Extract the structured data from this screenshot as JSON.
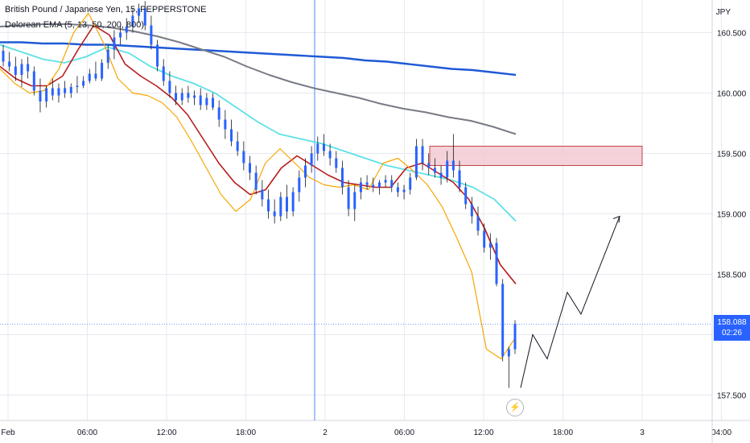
{
  "legend": {
    "title": "British Pound / Japanese Yen, 15, PEPPERSTONE",
    "indicator": "Delorean EMA (5, 13, 50, 200, 800)"
  },
  "colors": {
    "background": "#ffffff",
    "grid": "#e6e9ef",
    "candle_body": "#2962ff",
    "candle_wick": "#131722",
    "ema5": "#f7a600",
    "ema13": "#b71c1c",
    "ema50": "#5ee0e6",
    "ema200": "#787b86",
    "ema800": "#1e5ad6",
    "zone_fill": "#f3c7cf",
    "zone_stroke": "#b71c1c",
    "crosshair": "#2962ff",
    "price_tag": "#2962ff"
  },
  "price_tag": {
    "price": "158.088",
    "countdown": "02:26"
  },
  "chart_data": {
    "type": "candlestick",
    "title": "British Pound / Japanese Yen, 15, PEPPERSTONE",
    "currency": "JPY",
    "ylim": [
      157.29,
      160.77
    ],
    "y_ticks": [
      "160.500",
      "160.000",
      "159.500",
      "159.000",
      "158.500",
      "158.000",
      "157.500"
    ],
    "x_ticks": [
      "Feb",
      "06:00",
      "12:00",
      "18:00",
      "2",
      "06:00",
      "12:00",
      "18:00",
      "3",
      "04:00"
    ],
    "grid": true,
    "current_price": 158.088,
    "candles": {
      "ohlc": [
        [
          160.35,
          160.4,
          160.22,
          160.26
        ],
        [
          160.26,
          160.34,
          160.18,
          160.22
        ],
        [
          160.22,
          160.3,
          160.1,
          160.15
        ],
        [
          160.15,
          160.28,
          160.05,
          160.24
        ],
        [
          160.24,
          160.3,
          160.12,
          160.18
        ],
        [
          160.18,
          160.22,
          159.98,
          160.02
        ],
        [
          160.02,
          160.12,
          159.84,
          159.93
        ],
        [
          159.93,
          160.06,
          159.88,
          160.04
        ],
        [
          160.04,
          160.12,
          159.94,
          159.98
        ],
        [
          159.98,
          160.08,
          159.92,
          160.04
        ],
        [
          160.04,
          160.1,
          159.96,
          160.0
        ],
        [
          160.0,
          160.08,
          159.96,
          160.05
        ],
        [
          160.05,
          160.14,
          160.0,
          160.06
        ],
        [
          160.06,
          160.14,
          160.04,
          160.1
        ],
        [
          160.1,
          160.2,
          160.08,
          160.16
        ],
        [
          160.16,
          160.26,
          160.1,
          160.12
        ],
        [
          160.12,
          160.28,
          160.1,
          160.25
        ],
        [
          160.25,
          160.4,
          160.2,
          160.36
        ],
        [
          160.36,
          160.52,
          160.28,
          160.46
        ],
        [
          160.46,
          160.56,
          160.4,
          160.5
        ],
        [
          160.5,
          160.62,
          160.44,
          160.55
        ],
        [
          160.55,
          160.7,
          160.5,
          160.64
        ],
        [
          160.64,
          160.74,
          160.58,
          160.7
        ],
        [
          160.7,
          160.76,
          160.52,
          160.56
        ],
        [
          160.56,
          160.64,
          160.36,
          160.4
        ],
        [
          160.4,
          160.44,
          160.18,
          160.22
        ],
        [
          160.22,
          160.28,
          160.06,
          160.1
        ],
        [
          160.1,
          160.18,
          159.96,
          160.0
        ],
        [
          160.0,
          160.06,
          159.9,
          159.94
        ],
        [
          159.94,
          160.04,
          159.9,
          160.0
        ],
        [
          160.0,
          160.06,
          159.92,
          159.96
        ],
        [
          159.96,
          160.02,
          159.9,
          159.98
        ],
        [
          159.98,
          160.04,
          159.86,
          159.9
        ],
        [
          159.9,
          160.0,
          159.86,
          159.96
        ],
        [
          159.96,
          160.0,
          159.86,
          159.88
        ],
        [
          159.88,
          159.94,
          159.72,
          159.78
        ],
        [
          159.78,
          159.86,
          159.62,
          159.7
        ],
        [
          159.7,
          159.78,
          159.56,
          159.6
        ],
        [
          159.6,
          159.68,
          159.48,
          159.52
        ],
        [
          159.52,
          159.6,
          159.36,
          159.42
        ],
        [
          159.42,
          159.48,
          159.28,
          159.34
        ],
        [
          159.34,
          159.4,
          159.16,
          159.2
        ],
        [
          159.2,
          159.28,
          159.06,
          159.12
        ],
        [
          159.12,
          159.2,
          158.96,
          159.02
        ],
        [
          159.02,
          159.12,
          158.92,
          158.98
        ],
        [
          158.98,
          159.18,
          158.94,
          159.14
        ],
        [
          159.14,
          159.24,
          158.96,
          159.02
        ],
        [
          159.02,
          159.22,
          158.98,
          159.18
        ],
        [
          159.18,
          159.36,
          159.1,
          159.3
        ],
        [
          159.3,
          159.46,
          159.22,
          159.4
        ],
        [
          159.4,
          159.56,
          159.34,
          159.5
        ],
        [
          159.5,
          159.64,
          159.44,
          159.58
        ],
        [
          159.58,
          159.66,
          159.48,
          159.52
        ],
        [
          159.52,
          159.58,
          159.4,
          159.46
        ],
        [
          159.46,
          159.52,
          159.34,
          159.38
        ],
        [
          159.38,
          159.44,
          159.16,
          159.22
        ],
        [
          159.22,
          159.28,
          158.98,
          159.04
        ],
        [
          159.04,
          159.24,
          158.94,
          159.18
        ],
        [
          159.18,
          159.3,
          159.12,
          159.26
        ],
        [
          159.26,
          159.32,
          159.2,
          159.24
        ],
        [
          159.24,
          159.3,
          159.18,
          159.22
        ],
        [
          159.22,
          159.28,
          159.16,
          159.26
        ],
        [
          159.26,
          159.32,
          159.22,
          159.28
        ],
        [
          159.28,
          159.32,
          159.18,
          159.22
        ],
        [
          159.22,
          159.26,
          159.14,
          159.18
        ],
        [
          159.18,
          159.24,
          159.12,
          159.2
        ],
        [
          159.2,
          159.34,
          159.16,
          159.3
        ],
        [
          159.3,
          159.62,
          159.28,
          159.56
        ],
        [
          159.56,
          159.62,
          159.36,
          159.42
        ],
        [
          159.42,
          159.5,
          159.32,
          159.38
        ],
        [
          159.38,
          159.46,
          159.3,
          159.34
        ],
        [
          159.34,
          159.4,
          159.24,
          159.3
        ],
        [
          159.3,
          159.52,
          159.26,
          159.44
        ],
        [
          159.44,
          159.66,
          159.3,
          159.36
        ],
        [
          159.36,
          159.44,
          159.18,
          159.22
        ],
        [
          159.22,
          159.26,
          159.04,
          159.08
        ],
        [
          159.08,
          159.14,
          158.92,
          158.98
        ],
        [
          158.98,
          159.06,
          158.82,
          158.86
        ],
        [
          158.86,
          158.92,
          158.68,
          158.72
        ],
        [
          158.72,
          158.84,
          158.62,
          158.76
        ],
        [
          158.76,
          158.8,
          158.4,
          158.42
        ],
        [
          158.42,
          158.46,
          157.78,
          157.82
        ],
        [
          157.82,
          157.9,
          157.56,
          157.88
        ],
        [
          157.88,
          158.12,
          157.84,
          158.09
        ]
      ]
    },
    "series": [
      {
        "name": "EMA 800",
        "values": [
          160.42,
          160.42,
          160.41,
          160.41,
          160.4,
          160.4,
          160.39,
          160.38,
          160.37,
          160.36,
          160.35,
          160.34,
          160.33,
          160.32,
          160.31,
          160.3,
          160.29,
          160.27,
          160.26,
          160.24,
          160.22,
          160.2,
          160.19,
          160.17,
          160.15
        ]
      },
      {
        "name": "EMA 200",
        "values": [
          160.55,
          160.56,
          160.57,
          160.57,
          160.56,
          160.54,
          160.51,
          160.47,
          160.42,
          160.36,
          160.3,
          160.22,
          160.15,
          160.09,
          160.04,
          160.0,
          159.96,
          159.91,
          159.87,
          159.84,
          159.8,
          159.77,
          159.72,
          159.66
        ]
      },
      {
        "name": "EMA 50",
        "values": [
          160.4,
          160.34,
          160.28,
          160.25,
          160.3,
          160.38,
          160.33,
          160.22,
          160.14,
          160.08,
          160.0,
          159.88,
          159.76,
          159.66,
          159.62,
          159.58,
          159.52,
          159.46,
          159.4,
          159.36,
          159.32,
          159.28,
          159.22,
          159.12,
          158.94
        ]
      },
      {
        "name": "EMA 13",
        "values": [
          160.22,
          160.12,
          160.06,
          160.06,
          160.14,
          160.36,
          160.56,
          160.48,
          160.24,
          160.14,
          160.06,
          159.96,
          159.82,
          159.62,
          159.42,
          159.26,
          159.16,
          159.2,
          159.38,
          159.48,
          159.4,
          159.32,
          159.26,
          159.24,
          159.22,
          159.22,
          159.38,
          159.42,
          159.34,
          159.26,
          159.12,
          158.88,
          158.58,
          158.42
        ]
      },
      {
        "name": "EMA 5",
        "values": [
          160.2,
          160.08,
          160.0,
          160.02,
          160.2,
          160.5,
          160.66,
          160.42,
          160.12,
          160.0,
          159.98,
          159.92,
          159.8,
          159.6,
          159.38,
          159.16,
          159.02,
          159.12,
          159.42,
          159.54,
          159.42,
          159.3,
          159.24,
          159.22,
          159.24,
          159.2,
          159.42,
          159.46,
          159.36,
          159.24,
          159.06,
          158.8,
          158.52,
          157.88,
          157.8,
          157.98
        ]
      }
    ],
    "annotations": {
      "zone": {
        "price_top": 159.56,
        "price_bottom": 159.4
      },
      "projection": [
        157.56,
        158.0,
        157.8,
        158.35,
        158.17,
        158.98
      ]
    }
  }
}
